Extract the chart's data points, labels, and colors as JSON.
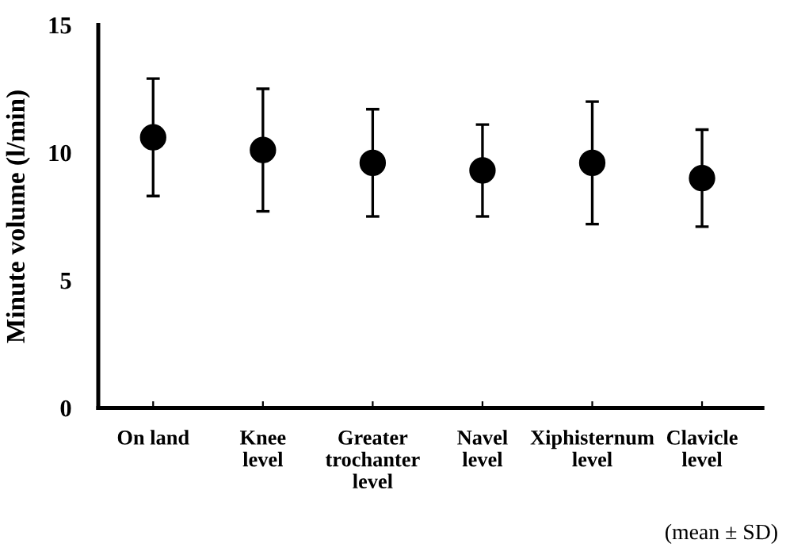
{
  "chart_data": {
    "type": "scatter",
    "ylabel": "Minute volume (l/min)",
    "categories": [
      "On land",
      "Knee\nlevel",
      "Greater\ntrochanter\nlevel",
      "Navel\nlevel",
      "Xiphisternum\nlevel",
      "Clavicle\nlevel"
    ],
    "values": [
      10.6,
      10.1,
      9.6,
      9.3,
      9.6,
      9.0
    ],
    "errors": [
      2.3,
      2.4,
      2.1,
      1.8,
      2.4,
      1.9
    ],
    "color": "#000000",
    "marker": "circle",
    "ylim": [
      0,
      15
    ],
    "yticks": [
      0,
      5,
      10,
      15
    ],
    "grid": false,
    "legend": false,
    "annotations": [
      "(mean ± SD)"
    ]
  }
}
